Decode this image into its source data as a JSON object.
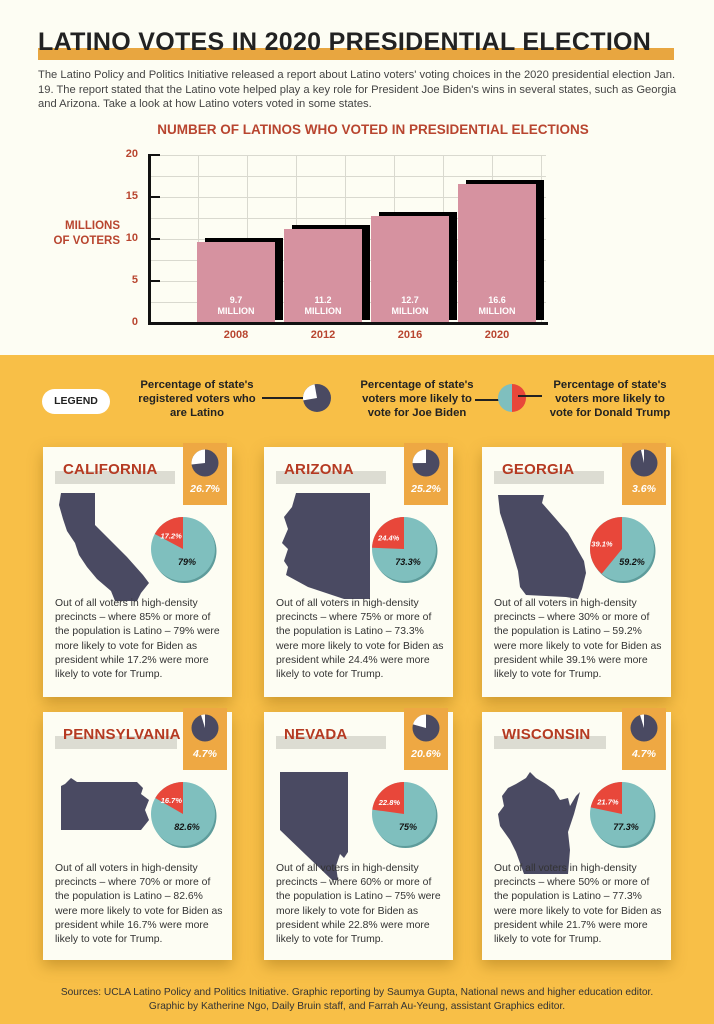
{
  "header": {
    "title": "LATINO VOTES IN 2020 PRESIDENTIAL ELECTION",
    "intro": "The Latino Policy and Politics Initiative released a report about Latino voters' voting choices in the 2020 presidential election Jan. 19. The report stated that the Latino vote helped play a key role for President Joe Biden's wins in several states, such as Georgia and Arizona. Take a look at how Latino voters voted in some states."
  },
  "chart_data": {
    "type": "bar",
    "title": "NUMBER OF LATINOS WHO VOTED IN PRESIDENTIAL ELECTIONS",
    "xlabel": "",
    "ylabel": "MILLIONS OF VOTERS",
    "categories": [
      "2008",
      "2012",
      "2016",
      "2020"
    ],
    "values": [
      9.7,
      11.2,
      12.7,
      16.6
    ],
    "value_labels": [
      "9.7 MILLION",
      "11.2 MILLION",
      "12.7 MILLION",
      "16.6 MILLION"
    ],
    "ylim": [
      0,
      20
    ],
    "yticks": [
      "0",
      "5",
      "10",
      "15",
      "20"
    ],
    "grid": true,
    "bar_color": "#d692a0",
    "shadow_color": "#000000"
  },
  "chart": {
    "ylabel_line1": "MILLIONS",
    "ylabel_line2": "OF VOTERS",
    "bar_labels": [
      {
        "value": "9.7",
        "unit": "MILLION"
      },
      {
        "value": "11.2",
        "unit": "MILLION"
      },
      {
        "value": "12.7",
        "unit": "MILLION"
      },
      {
        "value": "16.6",
        "unit": "MILLION"
      }
    ]
  },
  "legend": {
    "label": "LEGEND",
    "registered": "Percentage of state's registered voters who are Latino",
    "biden": "Percentage of state's voters more likely to vote for Joe Biden",
    "trump": "Percentage of state's voters more likely to vote for Donald Trump"
  },
  "colors": {
    "latino_pie": "#4a4a62",
    "biden": "#7fbfbe",
    "trump": "#e8473a",
    "accent": "#eea843",
    "title_red": "#b53a22"
  },
  "states": [
    {
      "name": "CALIFORNIA",
      "latino_pct": "26.7%",
      "latino_val": 26.7,
      "biden_pct": "79%",
      "biden_val": 79,
      "trump_pct": "17.2%",
      "trump_val": 17.2,
      "desc": "Out of all voters in high-density precincts – where 85% or more of the population is Latino – 79% were more likely to vote for Biden as president while 17.2% were more likely to vote for Trump."
    },
    {
      "name": "ARIZONA",
      "latino_pct": "25.2%",
      "latino_val": 25.2,
      "biden_pct": "73.3%",
      "biden_val": 73.3,
      "trump_pct": "24.4%",
      "trump_val": 24.4,
      "desc": "Out of all voters in high-density precincts – where 75% or more of the population is Latino – 73.3% were more likely to vote for Biden as president while 24.4% were more likely to vote for Trump."
    },
    {
      "name": "GEORGIA",
      "latino_pct": "3.6%",
      "latino_val": 3.6,
      "biden_pct": "59.2%",
      "biden_val": 59.2,
      "trump_pct": "39.1%",
      "trump_val": 39.1,
      "desc": "Out of all voters in high-density precincts – where 30% or more of the population is Latino – 59.2% were more likely to vote for Biden as president while 39.1% were more likely to vote for Trump."
    },
    {
      "name": "PENNSYLVANIA",
      "latino_pct": "4.7%",
      "latino_val": 4.7,
      "biden_pct": "82.6%",
      "biden_val": 82.6,
      "trump_pct": "16.7%",
      "trump_val": 16.7,
      "desc": "Out of all voters in high-density precincts – where 70% or more of the population is Latino – 82.6% were more likely to vote for Biden as president while 16.7% were more likely to vote for Trump."
    },
    {
      "name": "NEVADA",
      "latino_pct": "20.6%",
      "latino_val": 20.6,
      "biden_pct": "75%",
      "biden_val": 75,
      "trump_pct": "22.8%",
      "trump_val": 22.8,
      "desc": "Out of all voters in high-density precincts – where 60% or more of the population is Latino – 75% were more likely to vote for Biden as president while 22.8% were more likely to vote for Trump."
    },
    {
      "name": "WISCONSIN",
      "latino_pct": "4.7%",
      "latino_val": 4.7,
      "biden_pct": "77.3%",
      "biden_val": 77.3,
      "trump_pct": "21.7%",
      "trump_val": 21.7,
      "desc": "Out of all voters in high-density precincts – where 50% or more of the population is Latino – 77.3% were more likely to vote for Biden as president while 21.7% were more likely to vote for Trump."
    }
  ],
  "footer": {
    "line1": "Sources: UCLA Latino Policy and Politics Initiative. Graphic reporting by Saumya Gupta, National news and higher education editor.",
    "line2": "Graphic by Katherine Ngo, Daily Bruin staff, and Farrah Au-Yeung, assistant Graphics editor."
  }
}
